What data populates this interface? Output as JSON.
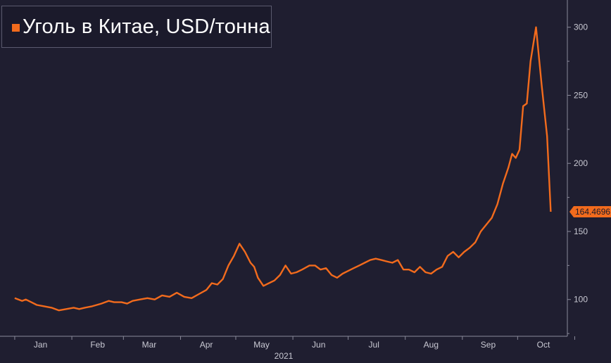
{
  "chart_data": {
    "type": "line",
    "title": "Уголь в Китае, USD/тонна",
    "year_label": "2021",
    "last_value_label": "164.4696",
    "x_tick_labels": [
      "Jan",
      "Feb",
      "Mar",
      "Apr",
      "May",
      "Jun",
      "Jul",
      "Aug",
      "Sep",
      "Oct"
    ],
    "y_tick_labels": [
      "100",
      "150",
      "200",
      "250",
      "300"
    ],
    "y_ticks": [
      100,
      150,
      200,
      250,
      300
    ],
    "ylim": [
      73,
      320
    ],
    "grid": false,
    "axis_position": "right",
    "colors": {
      "background": "#1f1e30",
      "line": "#f26b1d",
      "axis": "#8a8a9a",
      "text": "#c9c9d3"
    },
    "series": [
      {
        "name": "Уголь в Китае, USD/тонна",
        "x": [
          "2021-01-01",
          "2021-01-03",
          "2021-01-05",
          "2021-01-07",
          "2021-01-10",
          "2021-01-13",
          "2021-01-17",
          "2021-01-21",
          "2021-01-25",
          "2021-01-29",
          "2021-02-02",
          "2021-02-05",
          "2021-02-08",
          "2021-02-12",
          "2021-02-17",
          "2021-02-21",
          "2021-02-24",
          "2021-02-28",
          "2021-03-03",
          "2021-03-06",
          "2021-03-10",
          "2021-03-14",
          "2021-03-18",
          "2021-03-22",
          "2021-03-26",
          "2021-03-30",
          "2021-04-03",
          "2021-04-07",
          "2021-04-11",
          "2021-04-15",
          "2021-04-18",
          "2021-04-21",
          "2021-04-24",
          "2021-04-27",
          "2021-04-30",
          "2021-05-03",
          "2021-05-06",
          "2021-05-09",
          "2021-05-11",
          "2021-05-13",
          "2021-05-16",
          "2021-05-19",
          "2021-05-22",
          "2021-05-25",
          "2021-05-28",
          "2021-05-31",
          "2021-06-03",
          "2021-06-06",
          "2021-06-10",
          "2021-06-13",
          "2021-06-16",
          "2021-06-19",
          "2021-06-22",
          "2021-06-25",
          "2021-06-28",
          "2021-07-01",
          "2021-07-04",
          "2021-07-07",
          "2021-07-10",
          "2021-07-13",
          "2021-07-16",
          "2021-07-19",
          "2021-07-22",
          "2021-07-25",
          "2021-07-28",
          "2021-07-31",
          "2021-08-03",
          "2021-08-06",
          "2021-08-09",
          "2021-08-12",
          "2021-08-15",
          "2021-08-18",
          "2021-08-21",
          "2021-08-24",
          "2021-08-27",
          "2021-08-30",
          "2021-09-02",
          "2021-09-05",
          "2021-09-08",
          "2021-09-11",
          "2021-09-14",
          "2021-09-17",
          "2021-09-20",
          "2021-09-23",
          "2021-09-26",
          "2021-09-28",
          "2021-09-30",
          "2021-10-02",
          "2021-10-04",
          "2021-10-06",
          "2021-10-08",
          "2021-10-11",
          "2021-10-14",
          "2021-10-17",
          "2021-10-19"
        ],
        "values": [
          101,
          100,
          99,
          100,
          98,
          96,
          95,
          94,
          92,
          93,
          94,
          93,
          94,
          95,
          97,
          99,
          98,
          98,
          97,
          99,
          100,
          101,
          100,
          103,
          102,
          105,
          102,
          101,
          104,
          107,
          112,
          111,
          115,
          125,
          132,
          141,
          135,
          127,
          124,
          116,
          110,
          112,
          114,
          118,
          125,
          119,
          120,
          122,
          125,
          125,
          122,
          123,
          118,
          116,
          119,
          121,
          123,
          125,
          127,
          129,
          130,
          129,
          128,
          127,
          129,
          122,
          122,
          120,
          124,
          120,
          119,
          122,
          124,
          132,
          135,
          131,
          135,
          138,
          142,
          150,
          155,
          160,
          170,
          185,
          197,
          207,
          204,
          210,
          242,
          244,
          275,
          300,
          258,
          220,
          164.4696
        ]
      }
    ]
  }
}
